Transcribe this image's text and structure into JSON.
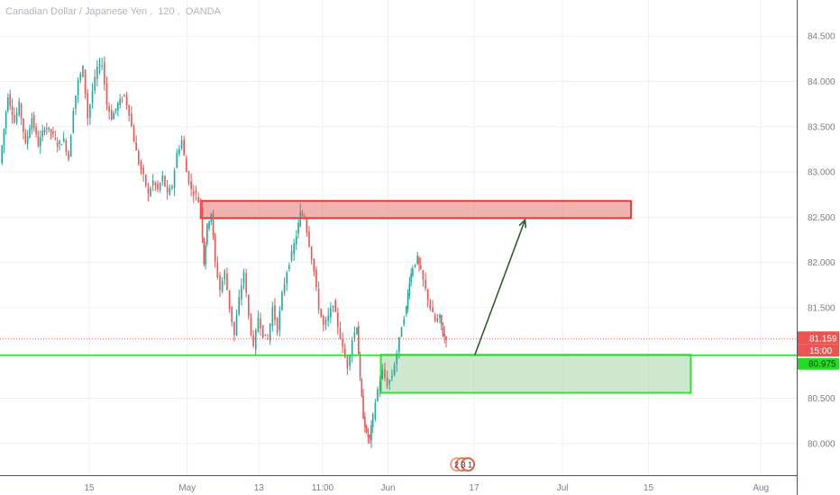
{
  "header": {
    "symbol": "Canadian Dollar / Japanese Yen",
    "interval": "120",
    "source": "OANDA"
  },
  "chart_data": {
    "type": "candlestick",
    "grid": true,
    "ylim": [
      79.65,
      84.9
    ],
    "y_ticks": [
      "84.500",
      "84.000",
      "83.500",
      "83.000",
      "82.500",
      "82.000",
      "81.500",
      "81.000",
      "80.500",
      "80.000"
    ],
    "y_tick_values": [
      84.5,
      84.0,
      83.5,
      83.0,
      82.5,
      82.0,
      81.5,
      81.0,
      80.5,
      80.0
    ],
    "x_ticks": [
      "15",
      "May",
      "13",
      "11:00",
      "Jun",
      "17",
      "Jul",
      "15",
      "Aug"
    ],
    "x_tick_fracs": [
      0.112,
      0.235,
      0.325,
      0.405,
      0.487,
      0.595,
      0.706,
      0.814,
      0.955
    ],
    "current_price": "81.159",
    "current_price_value": 81.159,
    "countdown": "15:00",
    "level_label": "80.975",
    "level_value": 80.975,
    "colors": {
      "up": "#26a69a",
      "down": "#ef5350",
      "resistance_fill": "#e57373",
      "resistance_border": "#e53935",
      "support_fill": "#a5d6a7",
      "support_border": "#33e033",
      "level_line": "#22dd22",
      "arrow": "#2e5e2e",
      "price_label": "#ef5350"
    },
    "zones": [
      {
        "name": "resistance",
        "y_top": 82.68,
        "y_bottom": 82.49,
        "x_start": 0.252,
        "x_end": 0.792
      },
      {
        "name": "support",
        "y_top": 80.98,
        "y_bottom": 80.56,
        "x_start": 0.478,
        "x_end": 0.867
      }
    ],
    "arrow": {
      "from": {
        "xf": 0.596,
        "y": 80.98
      },
      "to": {
        "xf": 0.659,
        "y": 82.47
      }
    },
    "series": [
      {
        "xf": 0.0,
        "y": 83.1
      },
      {
        "xf": 0.01,
        "y": 83.85
      },
      {
        "xf": 0.018,
        "y": 83.55
      },
      {
        "xf": 0.024,
        "y": 83.75
      },
      {
        "xf": 0.032,
        "y": 83.3
      },
      {
        "xf": 0.04,
        "y": 83.6
      },
      {
        "xf": 0.048,
        "y": 83.3
      },
      {
        "xf": 0.056,
        "y": 83.5
      },
      {
        "xf": 0.064,
        "y": 83.45
      },
      {
        "xf": 0.072,
        "y": 83.3
      },
      {
        "xf": 0.08,
        "y": 83.35
      },
      {
        "xf": 0.086,
        "y": 83.15
      },
      {
        "xf": 0.092,
        "y": 83.7
      },
      {
        "xf": 0.098,
        "y": 84.0
      },
      {
        "xf": 0.104,
        "y": 84.15
      },
      {
        "xf": 0.11,
        "y": 83.6
      },
      {
        "xf": 0.116,
        "y": 83.9
      },
      {
        "xf": 0.122,
        "y": 84.15
      },
      {
        "xf": 0.128,
        "y": 84.2
      },
      {
        "xf": 0.134,
        "y": 83.75
      },
      {
        "xf": 0.14,
        "y": 83.6
      },
      {
        "xf": 0.148,
        "y": 83.75
      },
      {
        "xf": 0.156,
        "y": 83.85
      },
      {
        "xf": 0.162,
        "y": 83.65
      },
      {
        "xf": 0.168,
        "y": 83.35
      },
      {
        "xf": 0.174,
        "y": 83.1
      },
      {
        "xf": 0.18,
        "y": 82.95
      },
      {
        "xf": 0.186,
        "y": 82.75
      },
      {
        "xf": 0.192,
        "y": 82.9
      },
      {
        "xf": 0.198,
        "y": 82.8
      },
      {
        "xf": 0.204,
        "y": 82.95
      },
      {
        "xf": 0.21,
        "y": 82.75
      },
      {
        "xf": 0.216,
        "y": 82.85
      },
      {
        "xf": 0.222,
        "y": 83.2
      },
      {
        "xf": 0.228,
        "y": 83.35
      },
      {
        "xf": 0.234,
        "y": 83.0
      },
      {
        "xf": 0.24,
        "y": 82.8
      },
      {
        "xf": 0.246,
        "y": 82.75
      },
      {
        "xf": 0.252,
        "y": 82.6
      },
      {
        "xf": 0.256,
        "y": 82.0
      },
      {
        "xf": 0.26,
        "y": 82.4
      },
      {
        "xf": 0.265,
        "y": 82.55
      },
      {
        "xf": 0.27,
        "y": 82.0
      },
      {
        "xf": 0.276,
        "y": 81.7
      },
      {
        "xf": 0.282,
        "y": 81.9
      },
      {
        "xf": 0.288,
        "y": 81.5
      },
      {
        "xf": 0.294,
        "y": 81.2
      },
      {
        "xf": 0.3,
        "y": 81.6
      },
      {
        "xf": 0.306,
        "y": 81.9
      },
      {
        "xf": 0.312,
        "y": 81.4
      },
      {
        "xf": 0.318,
        "y": 81.05
      },
      {
        "xf": 0.324,
        "y": 81.4
      },
      {
        "xf": 0.33,
        "y": 81.2
      },
      {
        "xf": 0.336,
        "y": 81.15
      },
      {
        "xf": 0.342,
        "y": 81.5
      },
      {
        "xf": 0.348,
        "y": 81.25
      },
      {
        "xf": 0.354,
        "y": 81.65
      },
      {
        "xf": 0.36,
        "y": 81.9
      },
      {
        "xf": 0.366,
        "y": 82.1
      },
      {
        "xf": 0.372,
        "y": 82.3
      },
      {
        "xf": 0.377,
        "y": 82.55
      },
      {
        "xf": 0.382,
        "y": 82.5
      },
      {
        "xf": 0.388,
        "y": 82.2
      },
      {
        "xf": 0.394,
        "y": 81.9
      },
      {
        "xf": 0.4,
        "y": 81.5
      },
      {
        "xf": 0.406,
        "y": 81.3
      },
      {
        "xf": 0.412,
        "y": 81.4
      },
      {
        "xf": 0.418,
        "y": 81.55
      },
      {
        "xf": 0.424,
        "y": 81.3
      },
      {
        "xf": 0.43,
        "y": 81.05
      },
      {
        "xf": 0.436,
        "y": 80.85
      },
      {
        "xf": 0.442,
        "y": 81.15
      },
      {
        "xf": 0.448,
        "y": 81.3
      },
      {
        "xf": 0.452,
        "y": 80.7
      },
      {
        "xf": 0.456,
        "y": 80.3
      },
      {
        "xf": 0.46,
        "y": 80.1
      },
      {
        "xf": 0.464,
        "y": 80.05
      },
      {
        "xf": 0.468,
        "y": 80.3
      },
      {
        "xf": 0.474,
        "y": 80.6
      },
      {
        "xf": 0.48,
        "y": 80.8
      },
      {
        "xf": 0.486,
        "y": 80.65
      },
      {
        "xf": 0.492,
        "y": 80.75
      },
      {
        "xf": 0.498,
        "y": 81.0
      },
      {
        "xf": 0.504,
        "y": 81.3
      },
      {
        "xf": 0.51,
        "y": 81.5
      },
      {
        "xf": 0.514,
        "y": 81.8
      },
      {
        "xf": 0.518,
        "y": 81.95
      },
      {
        "xf": 0.524,
        "y": 82.05
      },
      {
        "xf": 0.528,
        "y": 81.9
      },
      {
        "xf": 0.534,
        "y": 81.7
      },
      {
        "xf": 0.54,
        "y": 81.5
      },
      {
        "xf": 0.546,
        "y": 81.35
      },
      {
        "xf": 0.552,
        "y": 81.4
      },
      {
        "xf": 0.556,
        "y": 81.2
      },
      {
        "xf": 0.56,
        "y": 81.17
      }
    ]
  },
  "bottom_badge": {
    "text": "2 3 1"
  }
}
